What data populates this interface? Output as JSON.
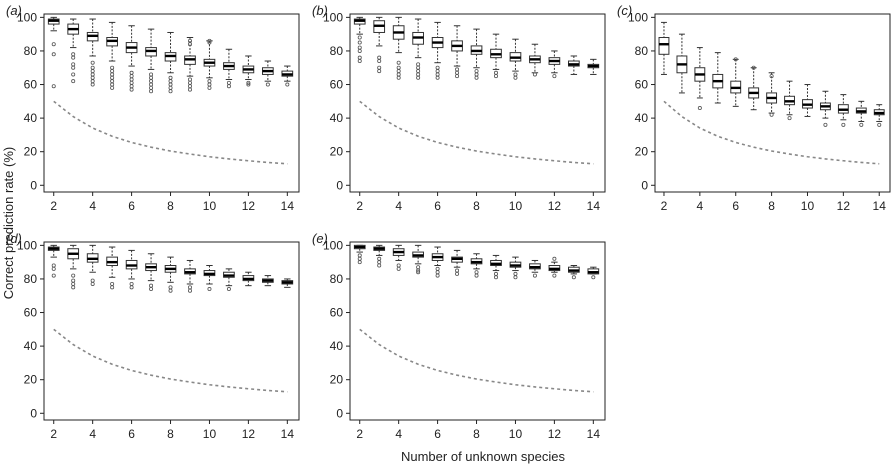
{
  "figure": {
    "ylabel": "Correct prediction rate (%)",
    "xlabel": "Number of unknown species"
  },
  "style": {
    "axis_color": "#222222",
    "box_color": "#333333",
    "outlier_color": "#555555",
    "baseline_color": "#888888"
  },
  "chart_data": [
    {
      "panel": "(a)",
      "type": "box",
      "x": [
        2,
        3,
        4,
        5,
        6,
        7,
        8,
        9,
        10,
        11,
        12,
        13,
        14
      ],
      "xticks": [
        2,
        4,
        6,
        8,
        10,
        12,
        14
      ],
      "yticks": [
        0,
        20,
        40,
        60,
        80,
        100
      ],
      "xlim": [
        1.5,
        14.6
      ],
      "ylim": [
        -4,
        102
      ],
      "series": [
        {
          "median": [
            98,
            93,
            89,
            86,
            82,
            80,
            77,
            75,
            73,
            71,
            69,
            68,
            66
          ],
          "q1": [
            96,
            90,
            86,
            83,
            79,
            77,
            74,
            72,
            71,
            69,
            67,
            66,
            65
          ],
          "q3": [
            99,
            96,
            91,
            88,
            85,
            82,
            79,
            77,
            75,
            73,
            71,
            70,
            68
          ],
          "whisker_low": [
            92,
            82,
            77,
            74,
            71,
            69,
            67,
            65,
            64,
            63,
            63,
            62,
            62
          ],
          "whisker_high": [
            100,
            99,
            99,
            97,
            95,
            93,
            91,
            88,
            86,
            81,
            77,
            74,
            71
          ],
          "outliers": [
            [
              84,
              78,
              59
            ],
            [
              78,
              76,
              72,
              70,
              66,
              62
            ],
            [
              73,
              70,
              68,
              66,
              64,
              62,
              60
            ],
            [
              70,
              68,
              66,
              64,
              62,
              60,
              58
            ],
            [
              67,
              65,
              63,
              61,
              59,
              57
            ],
            [
              66,
              64,
              62,
              60,
              58,
              56
            ],
            [
              64,
              62,
              60,
              58,
              56
            ],
            [
              63,
              61,
              59,
              57,
              86,
              84
            ],
            [
              62,
              60,
              58,
              86,
              85
            ],
            [
              61,
              59
            ],
            [
              61,
              60
            ],
            [
              60
            ],
            [
              60
            ]
          ]
        }
      ],
      "baseline": [
        50,
        40.9,
        34.1,
        29.2,
        25.5,
        22.7,
        20.4,
        18.6,
        17,
        15.7,
        14.6,
        13.6,
        12.8
      ]
    },
    {
      "panel": "(b)",
      "type": "box",
      "x": [
        2,
        3,
        4,
        5,
        6,
        7,
        8,
        9,
        10,
        11,
        12,
        13,
        14
      ],
      "xticks": [
        2,
        4,
        6,
        8,
        10,
        12,
        14
      ],
      "yticks": [
        0,
        20,
        40,
        60,
        80,
        100
      ],
      "xlim": [
        1.5,
        14.6
      ],
      "ylim": [
        -4,
        102
      ],
      "series": [
        {
          "median": [
            98,
            95,
            91,
            88,
            85,
            83,
            80,
            78,
            76,
            75,
            74,
            72,
            71
          ],
          "q1": [
            96,
            91,
            87,
            84,
            82,
            80,
            78,
            76,
            74,
            73,
            72,
            71,
            70
          ],
          "q3": [
            99,
            98,
            95,
            91,
            88,
            86,
            83,
            81,
            79,
            77,
            76,
            74,
            72
          ],
          "whisker_low": [
            90,
            83,
            79,
            76,
            73,
            71,
            70,
            69,
            68,
            67,
            67,
            66,
            66
          ],
          "whisker_high": [
            100,
            100,
            100,
            99,
            97,
            95,
            93,
            90,
            87,
            84,
            80,
            77,
            75
          ],
          "outliers": [
            [
              88,
              85,
              82,
              80,
              76,
              74
            ],
            [
              76,
              74,
              70,
              68
            ],
            [
              73,
              70,
              68,
              66,
              64
            ],
            [
              72,
              70,
              68,
              66,
              64
            ],
            [
              70,
              68,
              66,
              64
            ],
            [
              69,
              67,
              65
            ],
            [
              68,
              66,
              64
            ],
            [
              67,
              65
            ],
            [
              66,
              64
            ],
            [
              66
            ],
            [
              65
            ],
            [],
            []
          ]
        }
      ],
      "baseline": [
        50,
        40.9,
        34.1,
        29.2,
        25.5,
        22.7,
        20.4,
        18.6,
        17,
        15.7,
        14.6,
        13.6,
        12.8
      ]
    },
    {
      "panel": "(c)",
      "type": "box",
      "x": [
        2,
        3,
        4,
        5,
        6,
        7,
        8,
        9,
        10,
        11,
        12,
        13,
        14
      ],
      "xticks": [
        2,
        4,
        6,
        8,
        10,
        12,
        14
      ],
      "yticks": [
        0,
        20,
        40,
        60,
        80,
        100
      ],
      "xlim": [
        1.5,
        14.6
      ],
      "ylim": [
        -4,
        102
      ],
      "series": [
        {
          "median": [
            84,
            72,
            66,
            62,
            58,
            55,
            52,
            50,
            48,
            47,
            45,
            44,
            43
          ],
          "q1": [
            78,
            67,
            62,
            58,
            55,
            52,
            49,
            48,
            46,
            45,
            43,
            43,
            42
          ],
          "q3": [
            88,
            77,
            70,
            66,
            62,
            58,
            55,
            53,
            51,
            49,
            48,
            46,
            45
          ],
          "whisker_low": [
            66,
            55,
            52,
            49,
            47,
            45,
            43,
            42,
            41,
            40,
            39,
            38,
            38
          ],
          "whisker_high": [
            97,
            90,
            82,
            79,
            75,
            70,
            67,
            62,
            60,
            56,
            54,
            50,
            48
          ],
          "outliers": [
            [],
            [],
            [
              46
            ],
            [],
            [
              75
            ],
            [
              70
            ],
            [
              42,
              65
            ],
            [
              40
            ],
            [],
            [
              36
            ],
            [
              36
            ],
            [
              36
            ],
            [
              36
            ]
          ]
        }
      ],
      "baseline": [
        50,
        40.9,
        34.1,
        29.2,
        25.5,
        22.7,
        20.4,
        18.6,
        17,
        15.7,
        14.6,
        13.6,
        12.8
      ]
    },
    {
      "panel": "(d)",
      "type": "box",
      "x": [
        2,
        3,
        4,
        5,
        6,
        7,
        8,
        9,
        10,
        11,
        12,
        13,
        14
      ],
      "xticks": [
        2,
        4,
        6,
        8,
        10,
        12,
        14
      ],
      "yticks": [
        0,
        20,
        40,
        60,
        80,
        100
      ],
      "xlim": [
        1.5,
        14.6
      ],
      "ylim": [
        -4,
        102
      ],
      "series": [
        {
          "median": [
            98,
            95,
            92,
            90,
            88,
            87,
            86,
            84,
            83,
            82,
            80,
            79,
            78
          ],
          "q1": [
            97,
            92,
            90,
            88,
            86,
            85,
            84,
            83,
            82,
            81,
            79,
            78,
            77
          ],
          "q3": [
            99,
            98,
            95,
            93,
            91,
            89,
            88,
            86,
            85,
            84,
            82,
            80,
            79
          ],
          "whisker_low": [
            93,
            86,
            84,
            81,
            80,
            79,
            78,
            77,
            77,
            76,
            76,
            76,
            75
          ],
          "whisker_high": [
            100,
            100,
            100,
            99,
            97,
            95,
            93,
            91,
            88,
            86,
            84,
            82,
            80
          ],
          "outliers": [
            [
              88,
              86,
              82
            ],
            [
              82,
              79,
              77,
              75
            ],
            [
              79,
              77
            ],
            [
              77,
              75
            ],
            [
              77,
              75
            ],
            [
              76,
              74
            ],
            [
              75,
              73
            ],
            [
              75,
              73
            ],
            [
              74
            ],
            [
              74
            ],
            [],
            [],
            []
          ]
        }
      ],
      "baseline": [
        50,
        40.9,
        34.1,
        29.2,
        25.5,
        22.7,
        20.4,
        18.6,
        17,
        15.7,
        14.6,
        13.6,
        12.8
      ]
    },
    {
      "panel": "(e)",
      "type": "box",
      "x": [
        2,
        3,
        4,
        5,
        6,
        7,
        8,
        9,
        10,
        11,
        12,
        13,
        14
      ],
      "xticks": [
        2,
        4,
        6,
        8,
        10,
        12,
        14
      ],
      "yticks": [
        0,
        20,
        40,
        60,
        80,
        100
      ],
      "xlim": [
        1.5,
        14.6
      ],
      "ylim": [
        -4,
        102
      ],
      "series": [
        {
          "median": [
            99,
            98,
            96,
            94,
            93,
            92,
            90,
            89,
            88,
            87,
            86,
            85,
            84
          ],
          "q1": [
            98,
            97,
            94,
            93,
            91,
            90,
            89,
            88,
            87,
            86,
            85,
            84,
            83
          ],
          "q3": [
            100,
            99,
            98,
            96,
            95,
            93,
            92,
            91,
            90,
            89,
            88,
            87,
            86
          ],
          "whisker_low": [
            96,
            94,
            91,
            89,
            88,
            87,
            86,
            85,
            85,
            84,
            84,
            83,
            83
          ],
          "whisker_high": [
            100,
            100,
            100,
            100,
            99,
            97,
            95,
            94,
            93,
            91,
            90,
            88,
            87
          ],
          "outliers": [
            [
              94,
              92,
              90
            ],
            [
              92,
              90,
              88
            ],
            [
              88,
              86
            ],
            [
              87,
              85,
              84
            ],
            [
              86,
              84,
              82
            ],
            [
              85,
              83
            ],
            [
              84,
              82
            ],
            [
              83,
              81
            ],
            [
              83,
              81
            ],
            [
              82
            ],
            [
              92,
              82
            ],
            [
              81
            ],
            [
              81
            ]
          ]
        }
      ],
      "baseline": [
        50,
        40.9,
        34.1,
        29.2,
        25.5,
        22.7,
        20.4,
        18.6,
        17,
        15.7,
        14.6,
        13.6,
        12.8
      ]
    }
  ]
}
